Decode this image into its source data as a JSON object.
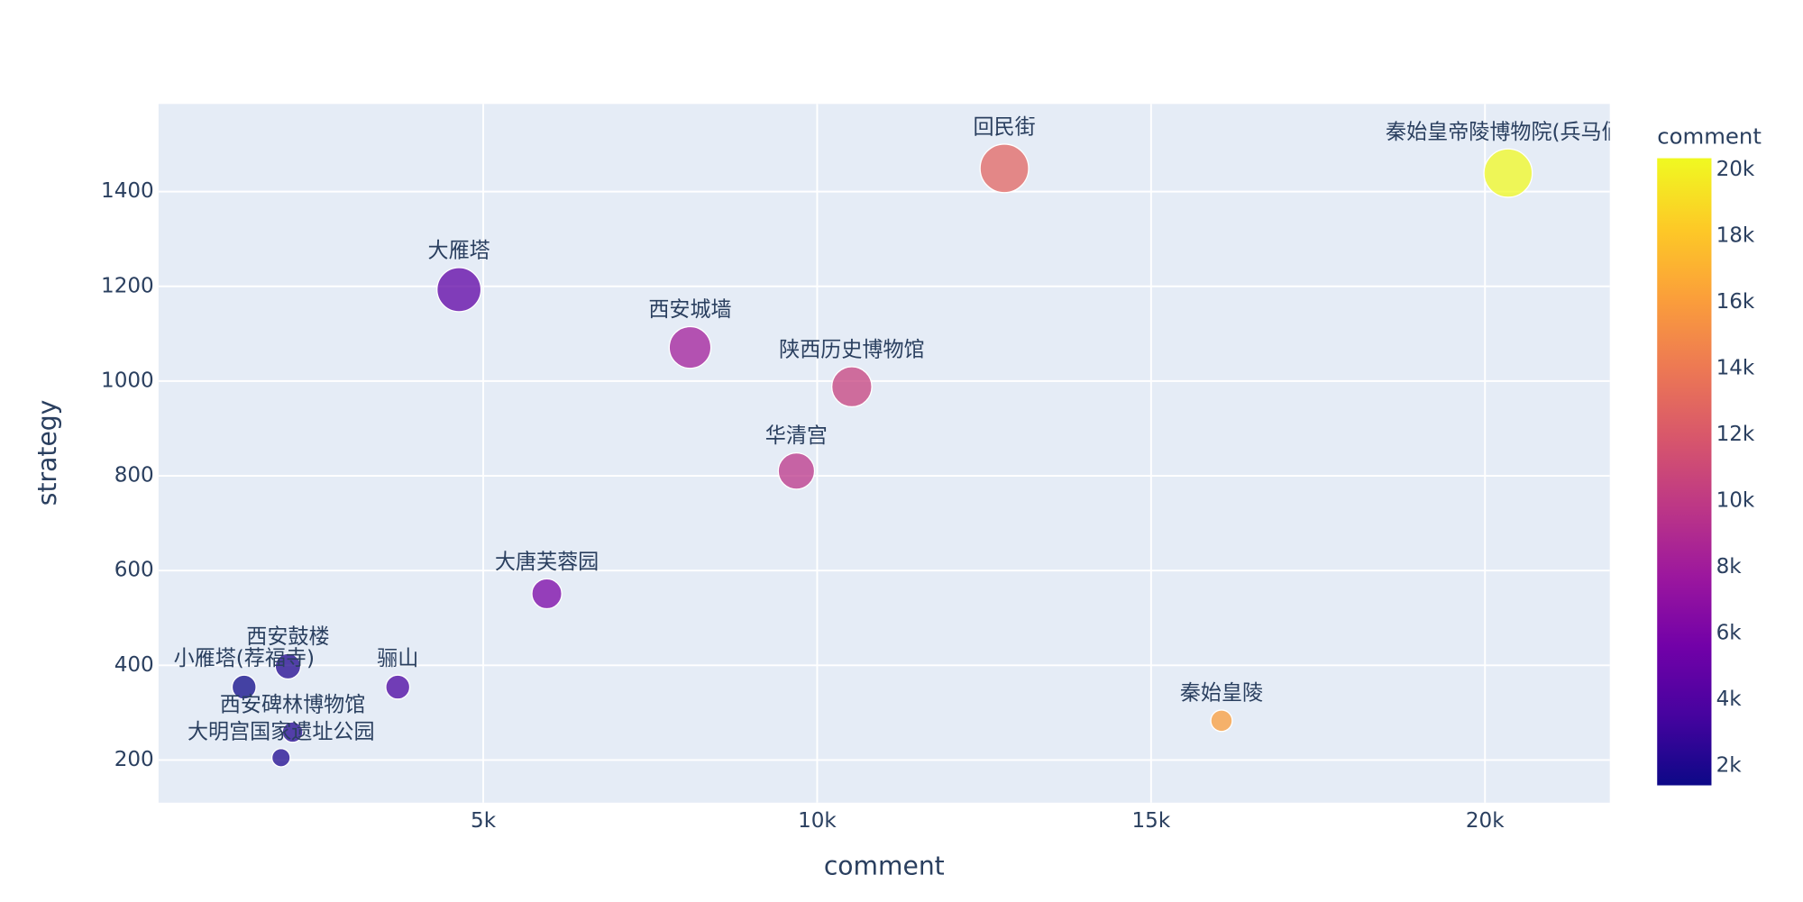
{
  "chart_data": {
    "type": "scatter",
    "x_label": "comment",
    "y_label": "strategy",
    "labels": [
      "秦始皇帝陵博物院(兵马俑)",
      "回民街",
      "大雁塔",
      "西安城墙",
      "陕西历史博物馆",
      "华清宫",
      "大唐芙蓉园",
      "秦始皇陵",
      "骊山",
      "西安鼓楼",
      "小雁塔(荐福寺)",
      "西安碑林博物馆",
      "大明宫国家遗址公园"
    ],
    "x": [
      20346,
      12803,
      4637,
      8097,
      10519,
      9689,
      5952,
      16055,
      3720,
      2076,
      1419,
      2145,
      1972
    ],
    "y": [
      1439,
      1449,
      1193,
      1071,
      988,
      810,
      551,
      283,
      354,
      398,
      354,
      259,
      205
    ],
    "xlim": [
      138,
      21869
    ],
    "ylim": [
      110,
      1585
    ],
    "xticks": [
      {
        "value": 5000,
        "label": "5k"
      },
      {
        "value": 10000,
        "label": "10k"
      },
      {
        "value": 15000,
        "label": "15k"
      },
      {
        "value": 20000,
        "label": "20k"
      }
    ],
    "yticks": [
      200,
      400,
      600,
      800,
      1000,
      1200,
      1400
    ],
    "grid": true,
    "colorbar_title": "comment",
    "colorscale": [
      "#0d0887",
      "#46039f",
      "#7201a8",
      "#9c179e",
      "#bd3786",
      "#d8576b",
      "#ed7953",
      "#fb9f3a",
      "#fdca26",
      "#f0f921"
    ],
    "colorbar_ticks": [
      {
        "value": 2000,
        "label": "2k"
      },
      {
        "value": 4000,
        "label": "4k"
      },
      {
        "value": 6000,
        "label": "6k"
      },
      {
        "value": 8000,
        "label": "8k"
      },
      {
        "value": 10000,
        "label": "10k"
      },
      {
        "value": 12000,
        "label": "12k"
      },
      {
        "value": 14000,
        "label": "14k"
      },
      {
        "value": 16000,
        "label": "16k"
      },
      {
        "value": 18000,
        "label": "18k"
      },
      {
        "value": 20000,
        "label": "20k"
      }
    ]
  }
}
